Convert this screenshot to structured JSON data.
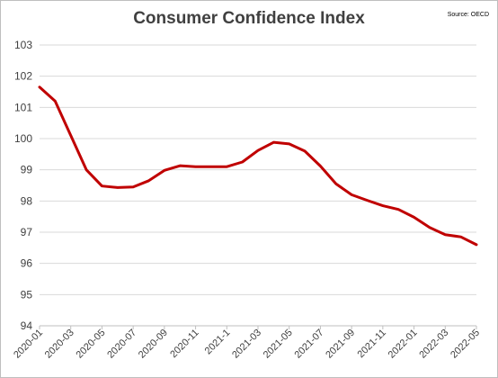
{
  "chart_data": {
    "type": "line",
    "title": "Consumer Confidence Index",
    "source": "Source: OECD",
    "xlabel": "",
    "ylabel": "",
    "ylim": [
      94,
      103
    ],
    "y_ticks": [
      94,
      95,
      96,
      97,
      98,
      99,
      100,
      101,
      102,
      103
    ],
    "grid": true,
    "legend": "none",
    "line_color": "#C00000",
    "x": [
      "2020-01",
      "2020-02",
      "2020-03",
      "2020-04",
      "2020-05",
      "2020-06",
      "2020-07",
      "2020-08",
      "2020-09",
      "2020-10",
      "2020-11",
      "2020-12",
      "2021-01",
      "2021-02",
      "2021-03",
      "2021-04",
      "2021-05",
      "2021-06",
      "2021-07",
      "2021-08",
      "2021-09",
      "2021-10",
      "2021-11",
      "2021-12",
      "2022-01",
      "2022-02",
      "2022-03",
      "2022-04",
      "2022-05"
    ],
    "x_tick_labels": [
      "2020-01",
      "2020-03",
      "2020-05",
      "2020-07",
      "2020-09",
      "2020-11",
      "2021-1",
      "2021-03",
      "2021-05",
      "2021-07",
      "2021-09",
      "2021-11",
      "2022-01",
      "2022-03",
      "2022-05"
    ],
    "series": [
      {
        "values": [
          101.65,
          101.2,
          100.1,
          99.0,
          98.48,
          98.43,
          98.45,
          98.65,
          98.98,
          99.13,
          99.1,
          99.1,
          99.1,
          99.25,
          99.62,
          99.88,
          99.83,
          99.6,
          99.12,
          98.55,
          98.2,
          98.02,
          97.85,
          97.73,
          97.48,
          97.15,
          96.92,
          96.85,
          96.6
        ]
      }
    ]
  }
}
